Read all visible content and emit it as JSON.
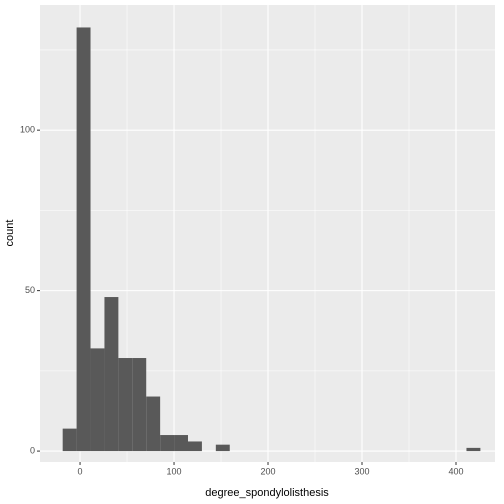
{
  "chart_data": {
    "type": "histogram",
    "x_label": "degree_spondylolisthesis",
    "y_label": "count",
    "bins": [
      -18.47,
      -3.66,
      11.16,
      25.97,
      40.79,
      55.6,
      70.41,
      85.23,
      100.04,
      114.86,
      129.67,
      144.48,
      159.3,
      174.11,
      188.93,
      203.74,
      218.56,
      233.37,
      248.18,
      263.0,
      277.81,
      292.63,
      307.44,
      322.25,
      337.07,
      351.88,
      366.7,
      381.51,
      396.33,
      411.14,
      425.95
    ],
    "values": [
      7,
      132,
      32,
      48,
      29,
      29,
      17,
      5,
      5,
      3,
      0,
      2,
      0,
      0,
      0,
      0,
      0,
      0,
      0,
      0,
      0,
      0,
      0,
      0,
      0,
      0,
      0,
      0,
      0,
      1
    ],
    "color": "#595959",
    "xlim": [
      -42.6,
      441.5
    ],
    "ylim": [
      -3.4,
      139
    ],
    "xticks": [
      0,
      100,
      200,
      300,
      400
    ],
    "yticks": [
      0,
      50,
      100
    ],
    "minor_xticks": [
      50,
      150,
      250,
      350
    ],
    "minor_yticks": [
      25,
      75,
      125
    ],
    "grid": true
  }
}
